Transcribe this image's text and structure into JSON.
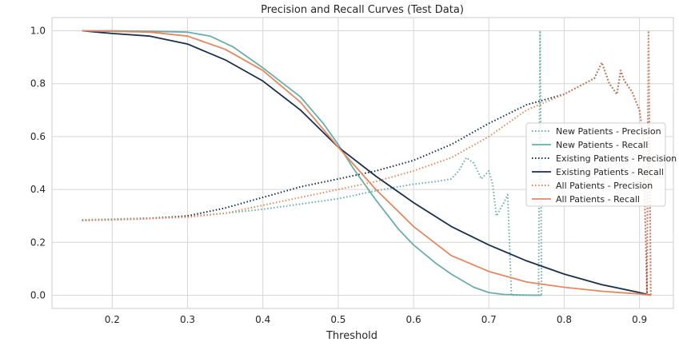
{
  "chart_data": {
    "type": "line",
    "title": "Precision and Recall Curves (Test Data)",
    "xlabel": "Threshold",
    "ylabel": "",
    "xlim": [
      0.12,
      0.945
    ],
    "ylim": [
      -0.05,
      1.05
    ],
    "xticks": [
      "0.2",
      "0.3",
      "0.4",
      "0.5",
      "0.6",
      "0.7",
      "0.8",
      "0.9"
    ],
    "yticks": [
      "0.0",
      "0.2",
      "0.4",
      "0.6",
      "0.8",
      "1.0"
    ],
    "grid": true,
    "legend_position": "right",
    "series": [
      {
        "name": "New Patients - Precision",
        "color": "#6aaea9",
        "style": "dotted",
        "x": [
          0.16,
          0.2,
          0.25,
          0.3,
          0.35,
          0.4,
          0.45,
          0.5,
          0.55,
          0.6,
          0.63,
          0.65,
          0.66,
          0.67,
          0.68,
          0.69,
          0.7,
          0.705,
          0.71,
          0.72,
          0.725,
          0.73,
          0.735,
          0.74,
          0.75,
          0.76,
          0.766,
          0.768,
          0.77
        ],
        "y": [
          0.285,
          0.288,
          0.292,
          0.298,
          0.31,
          0.325,
          0.345,
          0.365,
          0.395,
          0.42,
          0.43,
          0.44,
          0.47,
          0.52,
          0.5,
          0.44,
          0.47,
          0.42,
          0.3,
          0.35,
          0.38,
          0.0,
          0.0,
          0.0,
          0.0,
          0.0,
          0.0,
          1.0,
          0.0
        ]
      },
      {
        "name": "New Patients - Recall",
        "color": "#6aaea9",
        "style": "solid",
        "x": [
          0.16,
          0.2,
          0.25,
          0.3,
          0.33,
          0.36,
          0.4,
          0.45,
          0.48,
          0.5,
          0.52,
          0.55,
          0.58,
          0.6,
          0.63,
          0.65,
          0.68,
          0.7,
          0.72,
          0.74,
          0.77
        ],
        "y": [
          1.0,
          1.0,
          0.998,
          0.995,
          0.98,
          0.94,
          0.86,
          0.75,
          0.65,
          0.57,
          0.48,
          0.36,
          0.25,
          0.19,
          0.12,
          0.08,
          0.03,
          0.01,
          0.003,
          0.001,
          0.0
        ]
      },
      {
        "name": "Existing Patients - Precision",
        "color": "#1a2f4c",
        "style": "dotted",
        "x": [
          0.16,
          0.2,
          0.25,
          0.3,
          0.35,
          0.4,
          0.45,
          0.5,
          0.55,
          0.6,
          0.65,
          0.7,
          0.75,
          0.8,
          0.82,
          0.84,
          0.85,
          0.86,
          0.87,
          0.875,
          0.88,
          0.89,
          0.9,
          0.905,
          0.91,
          0.912,
          0.915
        ],
        "y": [
          0.283,
          0.285,
          0.29,
          0.3,
          0.33,
          0.37,
          0.41,
          0.44,
          0.47,
          0.51,
          0.57,
          0.65,
          0.72,
          0.76,
          0.79,
          0.82,
          0.88,
          0.8,
          0.76,
          0.85,
          0.81,
          0.77,
          0.7,
          0.6,
          0.0,
          1.0,
          0.0
        ]
      },
      {
        "name": "Existing Patients - Recall",
        "color": "#1a2f4c",
        "style": "solid",
        "x": [
          0.16,
          0.2,
          0.25,
          0.3,
          0.35,
          0.4,
          0.45,
          0.5,
          0.55,
          0.6,
          0.65,
          0.7,
          0.75,
          0.8,
          0.85,
          0.9,
          0.915
        ],
        "y": [
          1.0,
          0.99,
          0.98,
          0.95,
          0.89,
          0.81,
          0.7,
          0.56,
          0.45,
          0.35,
          0.26,
          0.19,
          0.13,
          0.08,
          0.04,
          0.01,
          0.0
        ]
      },
      {
        "name": "All Patients - Precision",
        "color": "#e5875f",
        "style": "dotted",
        "x": [
          0.16,
          0.2,
          0.25,
          0.3,
          0.35,
          0.4,
          0.45,
          0.5,
          0.55,
          0.6,
          0.65,
          0.7,
          0.75,
          0.8,
          0.82,
          0.84,
          0.85,
          0.86,
          0.87,
          0.875,
          0.88,
          0.89,
          0.9,
          0.905,
          0.91,
          0.912,
          0.915
        ],
        "y": [
          0.283,
          0.285,
          0.29,
          0.295,
          0.31,
          0.34,
          0.37,
          0.4,
          0.43,
          0.47,
          0.52,
          0.6,
          0.7,
          0.76,
          0.79,
          0.82,
          0.88,
          0.8,
          0.76,
          0.85,
          0.81,
          0.77,
          0.7,
          0.6,
          0.0,
          1.0,
          0.0
        ]
      },
      {
        "name": "All Patients - Recall",
        "color": "#e5875f",
        "style": "solid",
        "x": [
          0.16,
          0.2,
          0.25,
          0.3,
          0.35,
          0.4,
          0.45,
          0.5,
          0.55,
          0.6,
          0.65,
          0.7,
          0.75,
          0.8,
          0.85,
          0.9,
          0.915
        ],
        "y": [
          1.0,
          0.998,
          0.995,
          0.98,
          0.93,
          0.85,
          0.73,
          0.56,
          0.4,
          0.26,
          0.15,
          0.09,
          0.05,
          0.03,
          0.015,
          0.005,
          0.0
        ]
      }
    ]
  }
}
